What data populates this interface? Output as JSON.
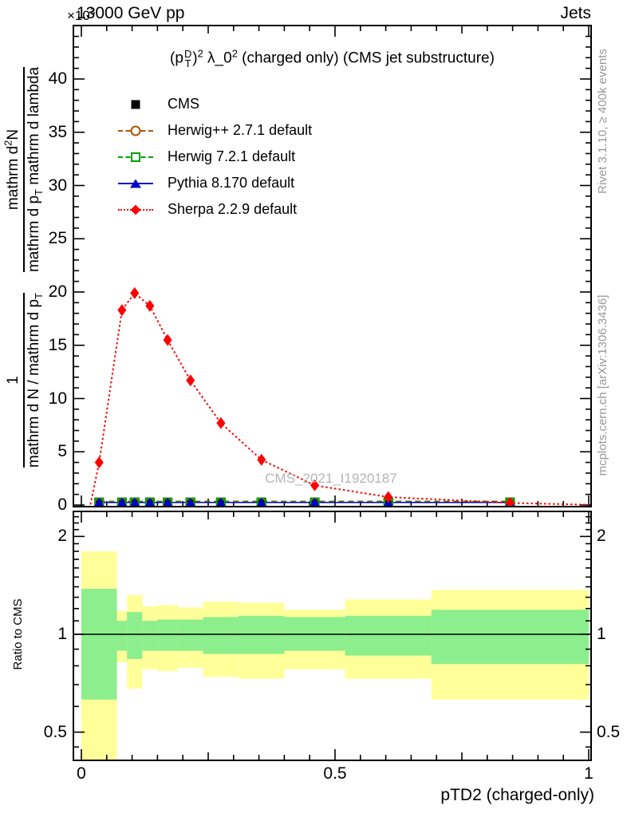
{
  "header": {
    "energy_title": "13000 GeV pp",
    "category": "Jets",
    "y_multiplier_base": "×10",
    "y_multiplier_exp": "3"
  },
  "plot_title": {
    "p_open": "(p",
    "p_sup": "D",
    "p_sub": "T",
    "p_close": ")",
    "p_sq": "2",
    "lambda_part": " λ_0",
    "lambda_sq": "2",
    "rest": " (charged only) (CMS jet substructure)"
  },
  "watermark": "CMS_2021_I1920187",
  "side_notes": {
    "rivet": "Rivet 3.1.10, ≥ 400k events",
    "mcplots": "mcplots.cern.ch [arXiv:1306.3436]"
  },
  "y_axis_label": {
    "frac1_num": "1",
    "frac1_den_main": "mathrm d N / mathrm d p",
    "frac1_den_sub": "T",
    "frac2_num_main": "mathrm d",
    "frac2_num_sup": "2",
    "frac2_num_tail": "N",
    "frac2_den_main": "mathrm d p",
    "frac2_den_sub": "T",
    "frac2_den_tail": " mathrm d lambda"
  },
  "ratio_axis_label": "Ratio to CMS",
  "x_axis_label": "pTD2 (charged-only)",
  "legend": [
    {
      "label": "CMS",
      "marker": "filled-square",
      "color": "#000000",
      "line": "none"
    },
    {
      "label": "Herwig++ 2.7.1 default",
      "marker": "open-circle",
      "color": "#aa5500",
      "line": "dashed"
    },
    {
      "label": "Herwig 7.2.1 default",
      "marker": "open-square",
      "color": "#00a000",
      "line": "dashed"
    },
    {
      "label": "Pythia 8.170 default",
      "marker": "filled-triangle",
      "color": "#0000cc",
      "line": "solid"
    },
    {
      "label": "Sherpa 2.2.9 default",
      "marker": "filled-diamond",
      "color": "#ff0000",
      "line": "dotted"
    }
  ],
  "chart_data": [
    {
      "type": "line",
      "panel": "main",
      "title": "(p_T^D)^2 lambda_0^2 (charged only) (CMS jet substructure)",
      "xlabel": "pTD2 (charged-only)",
      "ylabel": "1/(dN/dp_T) d^2N/(dp_T dlambda)",
      "y_multiplier": "1e3",
      "xlim": [
        -0.016,
        1.005
      ],
      "ylim": [
        -0.15,
        45.0
      ],
      "grid": false,
      "legend_position": "upper-left",
      "yticks": {
        "values": [
          0,
          5,
          10,
          15,
          20,
          25,
          30,
          35,
          40
        ],
        "labels": [
          "0",
          "5",
          "10",
          "15",
          "20",
          "25",
          "30",
          "35",
          "40"
        ]
      },
      "yminor_step": 1,
      "xticks": {
        "values": [
          0,
          0.5,
          1
        ],
        "labels": [
          "0",
          "0.5",
          "1"
        ]
      },
      "xmid_ticks": [
        0.25,
        0.75
      ],
      "xminor_step": 0.05,
      "series": [
        {
          "name": "CMS",
          "color": "#000000",
          "line": "none",
          "marker": "filled-square",
          "x": [
            0.035,
            0.08,
            0.105,
            0.135,
            0.17,
            0.215,
            0.275,
            0.355,
            0.46,
            0.605,
            0.845
          ],
          "y": [
            0.25,
            0.25,
            0.25,
            0.25,
            0.25,
            0.25,
            0.25,
            0.25,
            0.25,
            0.25,
            0.25
          ]
        },
        {
          "name": "Herwig++ 2.7.1 default",
          "color": "#aa5500",
          "line": "dashed",
          "marker": "open-circle",
          "x": [
            0.035,
            0.08,
            0.105,
            0.135,
            0.17,
            0.215,
            0.275,
            0.355,
            0.46,
            0.605,
            0.845
          ],
          "y": [
            0.25,
            0.25,
            0.25,
            0.25,
            0.25,
            0.25,
            0.25,
            0.25,
            0.25,
            0.25,
            0.25
          ]
        },
        {
          "name": "Herwig 7.2.1 default",
          "color": "#00a000",
          "line": "dashed",
          "marker": "open-square",
          "x": [
            0.035,
            0.08,
            0.105,
            0.135,
            0.17,
            0.215,
            0.275,
            0.355,
            0.46,
            0.605,
            0.845
          ],
          "y": [
            0.25,
            0.25,
            0.25,
            0.25,
            0.25,
            0.25,
            0.25,
            0.25,
            0.25,
            0.25,
            0.25
          ]
        },
        {
          "name": "Pythia 8.170 default",
          "color": "#0000cc",
          "line": "solid",
          "marker": "filled-triangle",
          "x": [
            0.035,
            0.08,
            0.105,
            0.135,
            0.17,
            0.215,
            0.275,
            0.355,
            0.46,
            0.605,
            0.845
          ],
          "y": [
            0.25,
            0.25,
            0.25,
            0.25,
            0.25,
            0.25,
            0.25,
            0.25,
            0.25,
            0.25,
            0.25
          ]
        },
        {
          "name": "Sherpa 2.2.9 default",
          "color": "#ff0000",
          "line": "dotted",
          "marker": "filled-diamond",
          "x": [
            0.035,
            0.08,
            0.105,
            0.135,
            0.17,
            0.215,
            0.275,
            0.355,
            0.46,
            0.605,
            0.845
          ],
          "y": [
            4.0,
            18.3,
            19.9,
            18.7,
            15.5,
            11.7,
            7.7,
            4.25,
            1.85,
            0.75,
            0.2
          ],
          "line_pre": [
            0.018,
            0.05
          ],
          "line_post": [
            1.0,
            0.02
          ]
        }
      ]
    },
    {
      "type": "ratio-bands",
      "panel": "ratio",
      "ylabel": "Ratio to CMS",
      "yscale": "log",
      "ylim": [
        0.41,
        2.39
      ],
      "reference_line": 1,
      "yticks": {
        "values": [
          2,
          1,
          0.5
        ],
        "labels": [
          "2",
          "1",
          "0.5"
        ]
      },
      "yminor_ticks": [
        0.45,
        0.6,
        0.7,
        0.8,
        0.9,
        1.1,
        1.2,
        1.3,
        1.4,
        1.5,
        1.6,
        1.7,
        1.8,
        1.9,
        2.1,
        2.2,
        2.3
      ],
      "band_colors": {
        "outer": "#ffff99",
        "inner": "#8cee8c"
      },
      "bin_edges": [
        0,
        0.07,
        0.09,
        0.12,
        0.15,
        0.19,
        0.24,
        0.31,
        0.4,
        0.52,
        0.69,
        1.0
      ],
      "bands": [
        {
          "xlo": 0.0,
          "xhi": 0.07,
          "yellow": [
            0.36,
            1.8
          ],
          "green": [
            0.63,
            1.38
          ]
        },
        {
          "xlo": 0.07,
          "xhi": 0.09,
          "yellow": [
            0.82,
            1.18
          ],
          "green": [
            0.89,
            1.1
          ]
        },
        {
          "xlo": 0.09,
          "xhi": 0.12,
          "yellow": [
            0.68,
            1.32
          ],
          "green": [
            0.84,
            1.17
          ]
        },
        {
          "xlo": 0.12,
          "xhi": 0.15,
          "yellow": [
            0.78,
            1.22
          ],
          "green": [
            0.89,
            1.1
          ]
        },
        {
          "xlo": 0.15,
          "xhi": 0.19,
          "yellow": [
            0.77,
            1.23
          ],
          "green": [
            0.89,
            1.11
          ]
        },
        {
          "xlo": 0.19,
          "xhi": 0.24,
          "yellow": [
            0.79,
            1.21
          ],
          "green": [
            0.89,
            1.11
          ]
        },
        {
          "xlo": 0.24,
          "xhi": 0.31,
          "yellow": [
            0.74,
            1.26
          ],
          "green": [
            0.87,
            1.13
          ]
        },
        {
          "xlo": 0.31,
          "xhi": 0.4,
          "yellow": [
            0.73,
            1.25
          ],
          "green": [
            0.87,
            1.14
          ]
        },
        {
          "xlo": 0.4,
          "xhi": 0.52,
          "yellow": [
            0.78,
            1.19
          ],
          "green": [
            0.89,
            1.13
          ]
        },
        {
          "xlo": 0.52,
          "xhi": 0.69,
          "yellow": [
            0.73,
            1.28
          ],
          "green": [
            0.86,
            1.14
          ]
        },
        {
          "xlo": 0.69,
          "xhi": 1.0,
          "yellow": [
            0.63,
            1.37
          ],
          "green": [
            0.81,
            1.19
          ]
        }
      ]
    }
  ]
}
